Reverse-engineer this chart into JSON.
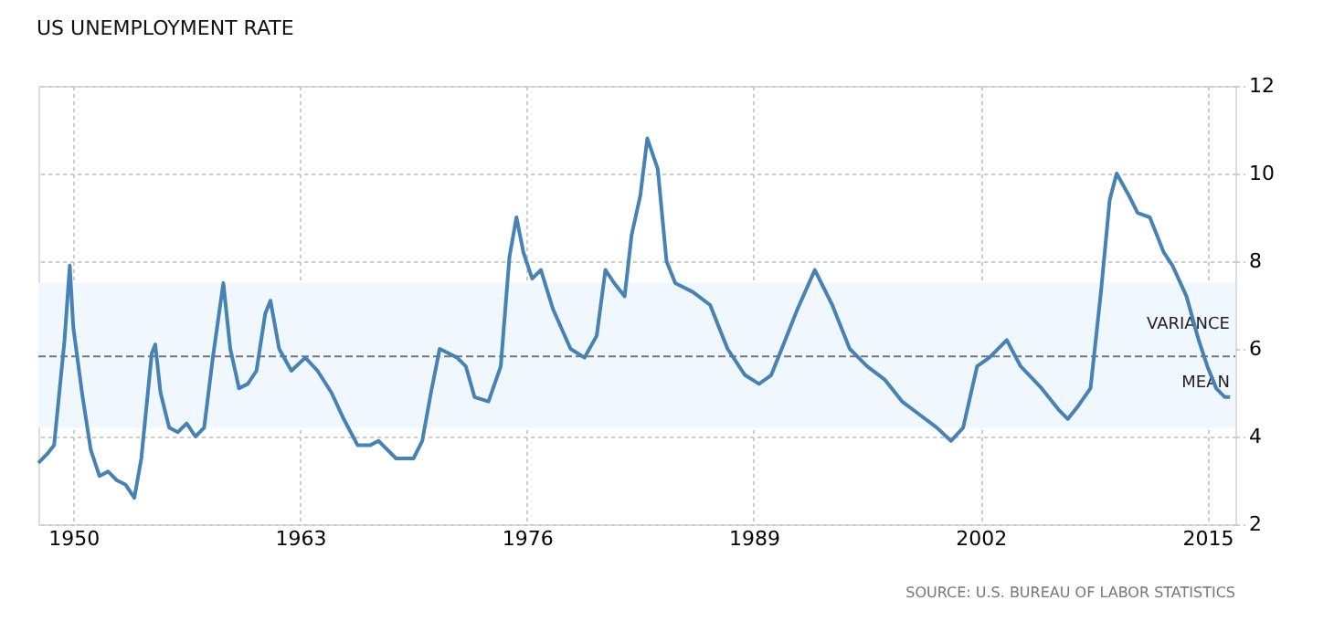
{
  "chart_data": {
    "type": "line",
    "title": "US UNEMPLOYMENT RATE",
    "x": [
      1948.0,
      1948.5,
      1948.9,
      1949.5,
      1949.8,
      1950.0,
      1950.5,
      1951.0,
      1951.5,
      1952.0,
      1952.5,
      1953.0,
      1953.5,
      1953.9,
      1954.5,
      1954.7,
      1955.0,
      1955.5,
      1956.0,
      1956.5,
      1957.0,
      1957.5,
      1958.0,
      1958.6,
      1959.0,
      1959.5,
      1960.0,
      1960.5,
      1961.0,
      1961.3,
      1961.8,
      1962.5,
      1963.3,
      1964.0,
      1964.8,
      1965.5,
      1966.3,
      1967.0,
      1967.5,
      1968.5,
      1969.5,
      1970.0,
      1970.5,
      1971.0,
      1971.5,
      1972.0,
      1972.5,
      1973.0,
      1973.8,
      1974.5,
      1975.0,
      1975.4,
      1975.8,
      1976.3,
      1976.8,
      1977.5,
      1978.5,
      1979.3,
      1980.0,
      1980.5,
      1981.0,
      1981.6,
      1982.0,
      1982.5,
      1982.9,
      1983.5,
      1984.0,
      1984.5,
      1985.5,
      1986.5,
      1987.5,
      1988.5,
      1989.3,
      1990.0,
      1990.8,
      1991.5,
      1992.5,
      1993.5,
      1994.5,
      1995.5,
      1996.5,
      1997.5,
      1998.5,
      1999.5,
      2000.3,
      2001.0,
      2001.8,
      2002.5,
      2003.5,
      2004.3,
      2005.5,
      2006.5,
      2007.0,
      2007.6,
      2008.3,
      2008.9,
      2009.4,
      2009.8,
      2010.5,
      2011.0,
      2011.7,
      2012.5,
      2013.0,
      2013.8,
      2014.5,
      2015.0,
      2015.5,
      2016.0,
      2016.3
    ],
    "series": [
      {
        "color": "#4682b4",
        "values": [
          3.4,
          3.6,
          3.8,
          6.2,
          7.9,
          6.5,
          5.0,
          3.7,
          3.1,
          3.2,
          3.0,
          2.9,
          2.6,
          3.5,
          5.9,
          6.1,
          5.0,
          4.2,
          4.1,
          4.3,
          4.0,
          4.2,
          5.8,
          7.5,
          6.0,
          5.1,
          5.2,
          5.5,
          6.8,
          7.1,
          6.0,
          5.5,
          5.8,
          5.5,
          5.0,
          4.4,
          3.8,
          3.8,
          3.9,
          3.5,
          3.5,
          3.9,
          5.0,
          6.0,
          5.9,
          5.8,
          5.6,
          4.9,
          4.8,
          5.6,
          8.1,
          9.0,
          8.2,
          7.6,
          7.8,
          6.9,
          6.0,
          5.8,
          6.3,
          7.8,
          7.5,
          7.2,
          8.6,
          9.5,
          10.8,
          10.1,
          8.0,
          7.5,
          7.3,
          7.0,
          6.0,
          5.4,
          5.2,
          5.4,
          6.2,
          6.9,
          7.8,
          7.0,
          6.0,
          5.6,
          5.3,
          4.8,
          4.5,
          4.2,
          3.9,
          4.2,
          5.6,
          5.8,
          6.2,
          5.6,
          5.1,
          4.6,
          4.4,
          4.7,
          5.1,
          7.3,
          9.4,
          10.0,
          9.5,
          9.1,
          9.0,
          8.2,
          7.9,
          7.2,
          6.2,
          5.6,
          5.1,
          4.9,
          4.9
        ]
      }
    ],
    "xlim": [
      1948,
      2016.6
    ],
    "xticks": [
      1950,
      1963,
      1976,
      1989,
      2002,
      2015
    ],
    "ylim": [
      2,
      12
    ],
    "yticks": [
      2,
      4,
      6,
      8,
      10,
      12
    ],
    "grid": true,
    "ref_lines": [
      {
        "axis": "y",
        "value": 5.83,
        "label": "MEAN",
        "color": "#777777",
        "line_style": "dashed"
      }
    ],
    "bands": [
      {
        "axis": "y",
        "from": 4.2,
        "to": 7.5,
        "label": "VARIANCE",
        "color": "#f0f7ff"
      }
    ],
    "annotations": [
      "SOURCE: U.S. BUREAU OF LABOR STATISTICS"
    ]
  }
}
